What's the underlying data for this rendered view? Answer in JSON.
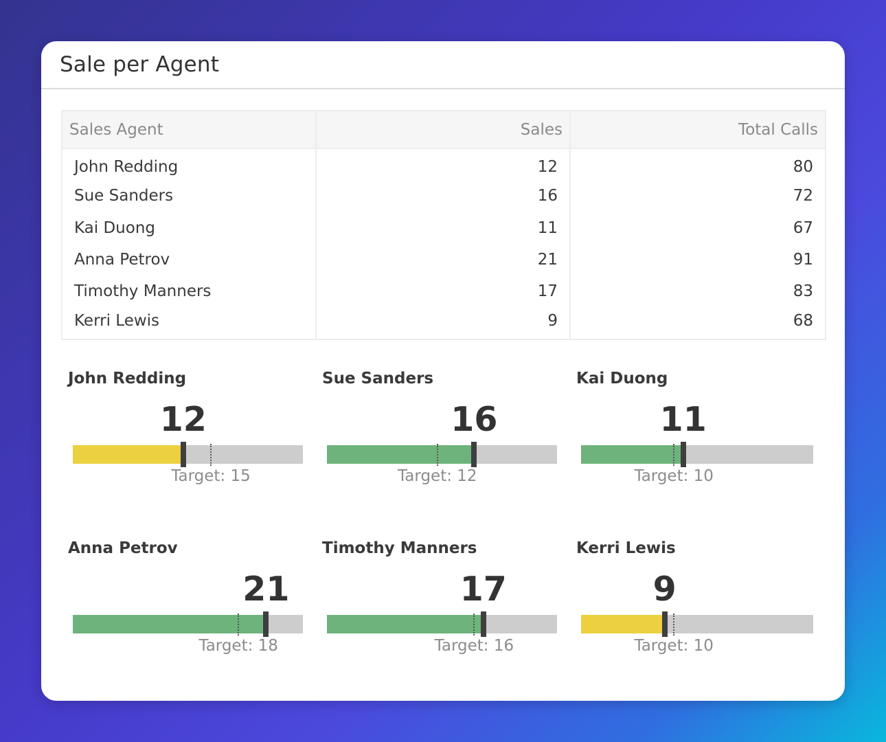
{
  "card": {
    "title": "Sale per Agent"
  },
  "table": {
    "headers": [
      "Sales Agent",
      "Sales",
      "Total Calls"
    ],
    "rows": [
      {
        "agent": "John Redding",
        "sales": "12",
        "calls": "80"
      },
      {
        "agent": "Sue Sanders",
        "sales": "16",
        "calls": "72"
      },
      {
        "agent": "Kai Duong",
        "sales": "11",
        "calls": "67"
      },
      {
        "agent": "Anna Petrov",
        "sales": "21",
        "calls": "91"
      },
      {
        "agent": "Timothy Manners",
        "sales": "17",
        "calls": "83"
      },
      {
        "agent": "Kerri Lewis",
        "sales": "9",
        "calls": "68"
      }
    ]
  },
  "gauges": {
    "max": 25,
    "colors": {
      "above": "#6db37b",
      "below": "#ecd040",
      "track": "#cdcdcd",
      "marker": "#3f3f3f"
    },
    "items": [
      {
        "name": "John Redding",
        "value": 12,
        "target": 15,
        "target_label": "Target: 15",
        "status": "below"
      },
      {
        "name": "Sue Sanders",
        "value": 16,
        "target": 12,
        "target_label": "Target: 12",
        "status": "above"
      },
      {
        "name": "Kai Duong",
        "value": 11,
        "target": 10,
        "target_label": "Target: 10",
        "status": "above"
      },
      {
        "name": "Anna Petrov",
        "value": 21,
        "target": 18,
        "target_label": "Target: 18",
        "status": "above"
      },
      {
        "name": "Timothy Manners",
        "value": 17,
        "target": 16,
        "target_label": "Target: 16",
        "status": "above"
      },
      {
        "name": "Kerri Lewis",
        "value": 9,
        "target": 10,
        "target_label": "Target: 10",
        "status": "below"
      }
    ]
  }
}
